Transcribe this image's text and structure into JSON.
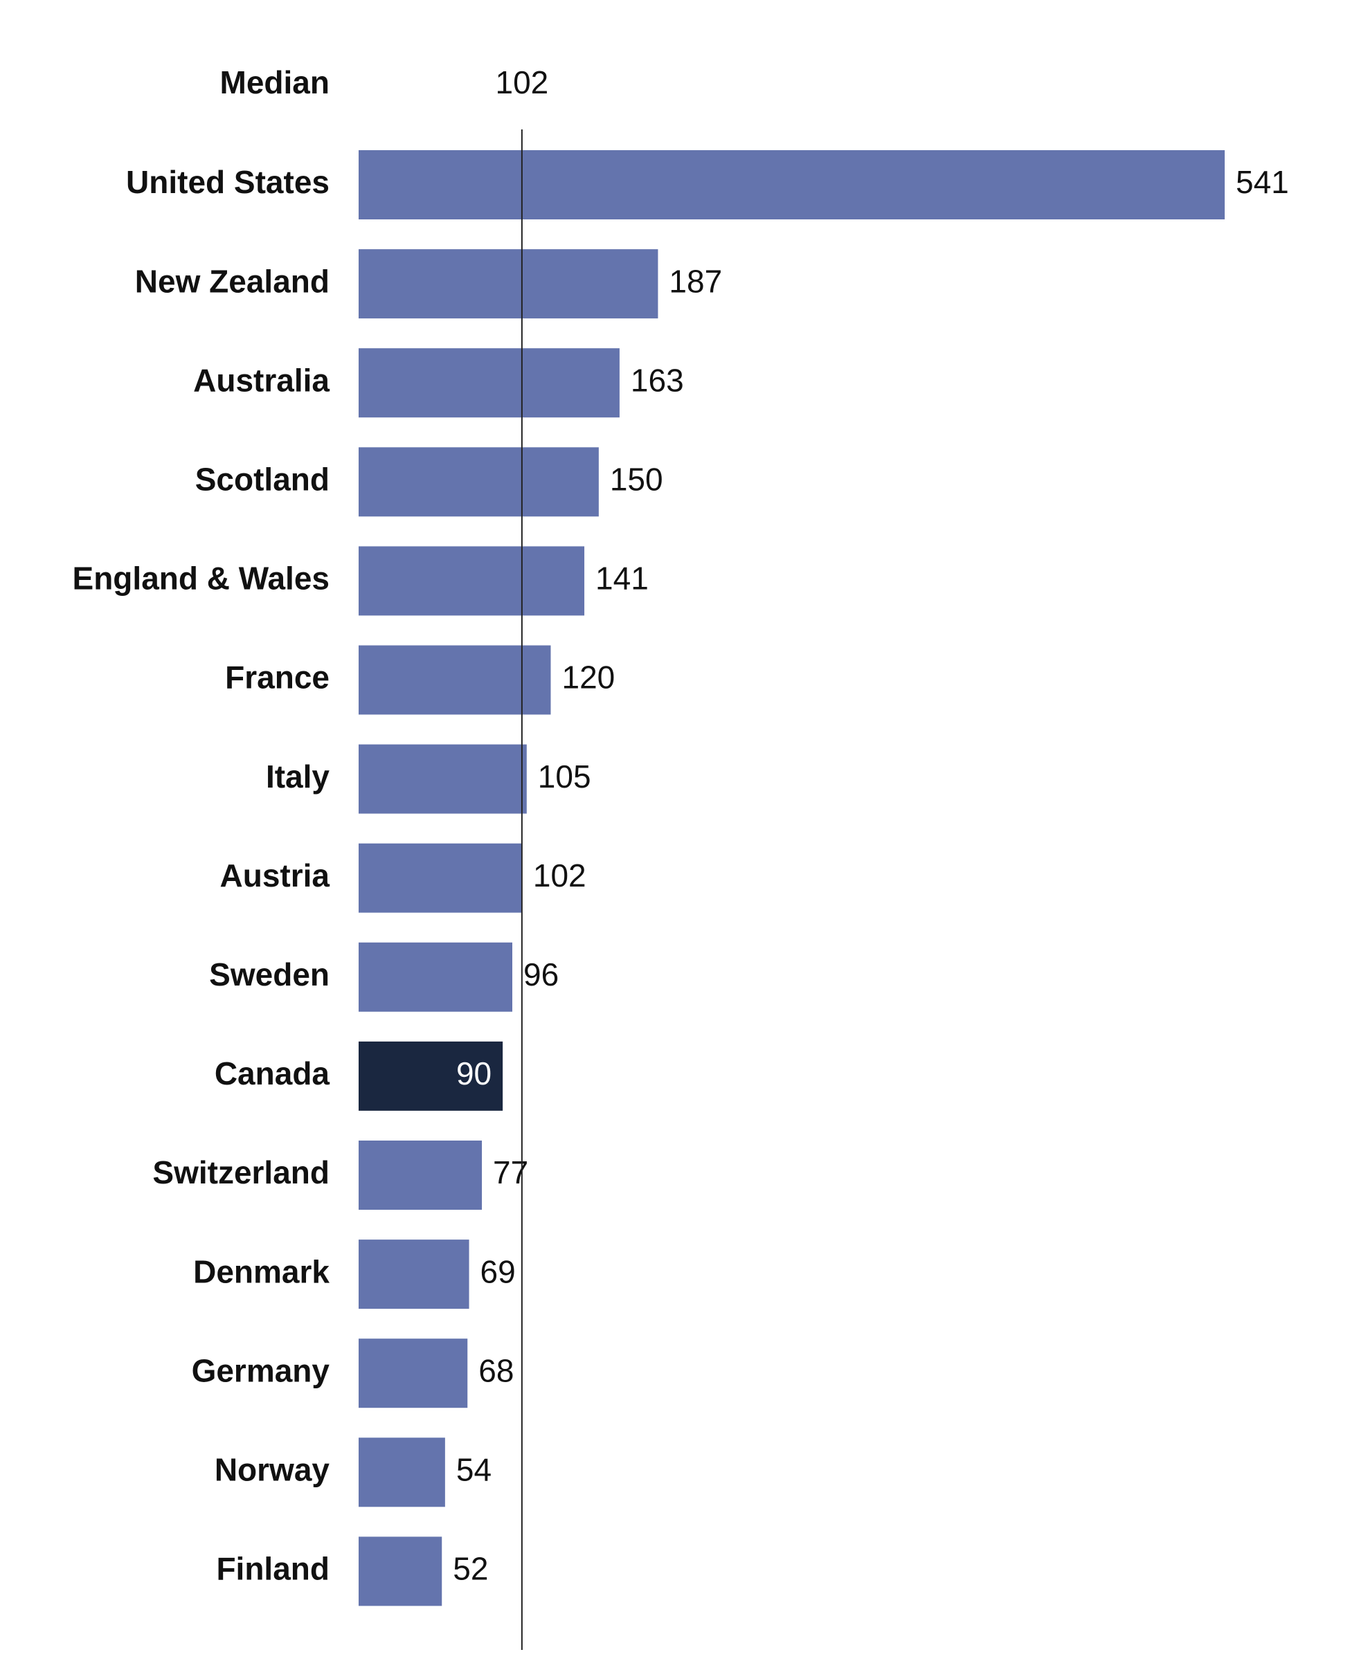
{
  "chart_data": {
    "type": "bar",
    "orientation": "horizontal",
    "categories": [
      "United States",
      "New Zealand",
      "Australia",
      "Scotland",
      "England & Wales",
      "France",
      "Italy",
      "Austria",
      "Sweden",
      "Canada",
      "Switzerland",
      "Denmark",
      "Germany",
      "Norway",
      "Finland"
    ],
    "values": [
      541,
      187,
      163,
      150,
      141,
      120,
      105,
      102,
      96,
      90,
      77,
      69,
      68,
      54,
      52
    ],
    "color": "#6474ad",
    "highlight": {
      "category": "Canada",
      "color": "#1a2740",
      "label_color": "#ffffff"
    },
    "median": {
      "label": "Median",
      "value": 102
    }
  }
}
